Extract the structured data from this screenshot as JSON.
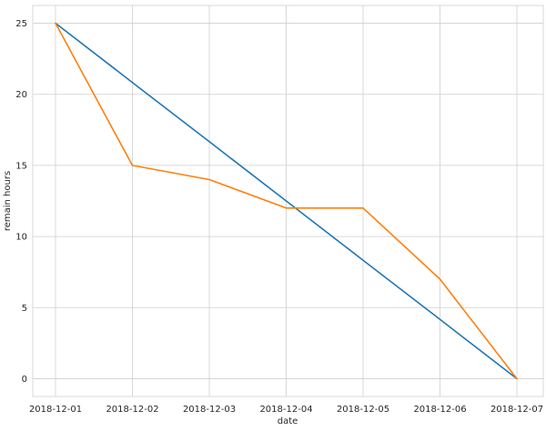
{
  "chart_data": {
    "type": "line",
    "title": "",
    "xlabel": "date",
    "ylabel": "remain hours",
    "x": [
      "2018-12-01",
      "2018-12-02",
      "2018-12-03",
      "2018-12-04",
      "2018-12-05",
      "2018-12-06",
      "2018-12-07"
    ],
    "ylim": [
      -1.25,
      26.25
    ],
    "yticks": [
      0,
      5,
      10,
      15,
      20,
      25
    ],
    "grid": true,
    "legend": "none",
    "series": [
      {
        "color": "#1f77b4",
        "values": [
          25,
          20.83,
          16.67,
          12.5,
          8.33,
          4.17,
          0
        ]
      },
      {
        "color": "#ff7f0e",
        "values": [
          25,
          15,
          14,
          12,
          12,
          7,
          0
        ]
      }
    ]
  }
}
